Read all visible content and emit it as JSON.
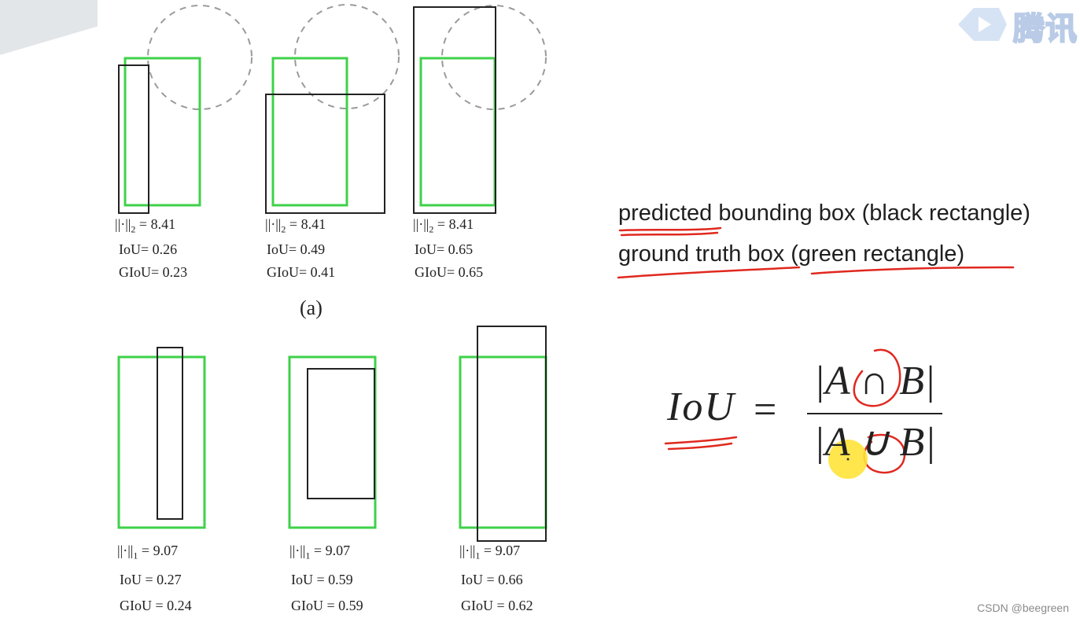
{
  "panel_a": [
    {
      "norm_label": "||·||",
      "norm_sub": "2",
      "norm_value": "= 8.41",
      "iou": "IoU= 0.26",
      "giou": "GIoU= 0.23"
    },
    {
      "norm_label": "||·||",
      "norm_sub": "2",
      "norm_value": "= 8.41",
      "iou": "IoU= 0.49",
      "giou": "GIoU= 0.41"
    },
    {
      "norm_label": "||·||",
      "norm_sub": "2",
      "norm_value": "= 8.41",
      "iou": "IoU= 0.65",
      "giou": "GIoU= 0.65"
    }
  ],
  "panel_a_caption": "(a)",
  "panel_b": [
    {
      "norm_label": "||·||",
      "norm_sub": "1",
      "norm_value": "= 9.07",
      "iou": "IoU = 0.27",
      "giou": "GIoU = 0.24"
    },
    {
      "norm_label": "||·||",
      "norm_sub": "1",
      "norm_value": "= 9.07",
      "iou": "IoU = 0.59",
      "giou": "GIoU = 0.59"
    },
    {
      "norm_label": "||·||",
      "norm_sub": "1",
      "norm_value": "= 9.07",
      "iou": "IoU = 0.66",
      "giou": "GIoU = 0.62"
    }
  ],
  "legend": {
    "predicted": "predicted bounding box (black rectangle)",
    "ground_truth": "ground truth box (green rectangle)"
  },
  "formula": {
    "lhs": "IoU",
    "equals": "=",
    "numerator": "|A ∩ B|",
    "denominator": "|A ∪ B|"
  },
  "watermark": {
    "text": "腾讯"
  },
  "credit": "CSDN @beegreen",
  "colors": {
    "predicted_box": "#222222",
    "ground_truth_box": "#3fd14a",
    "circle": "#9a9a9a",
    "annotation": "#e0281e",
    "highlight": "#ffe33a"
  }
}
